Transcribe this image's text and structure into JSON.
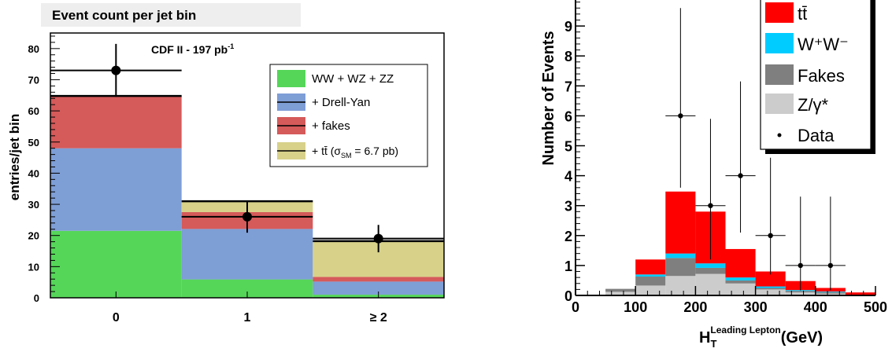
{
  "chart_data": [
    {
      "type": "bar",
      "stacked": true,
      "title": "Event count per jet bin",
      "annotation": "CDF II - 197 pb",
      "annotation_sup": "-1",
      "xlabel": "",
      "ylabel": "entries/jet bin",
      "categories": [
        "0",
        "1",
        "≥ 2"
      ],
      "ylim": [
        0,
        85
      ],
      "yticks": [
        "0",
        "10",
        "20",
        "30",
        "40",
        "50",
        "60",
        "70",
        "80"
      ],
      "legend_position": "top-right",
      "series": [
        {
          "name": "WW + WZ + ZZ",
          "color": "#55d659",
          "values": [
            21.5,
            5.9,
            1.0
          ]
        },
        {
          "name": "+ Drell-Yan",
          "color": "#7e9ed6",
          "values": [
            26.5,
            16.2,
            4.2
          ]
        },
        {
          "name": "+ fakes",
          "color": "#d55a5a",
          "values": [
            16.8,
            5.4,
            1.5
          ]
        },
        {
          "name": "+ tt̄ (σSM = 6.7 pb)",
          "color": "#d7d18a",
          "values": [
            0,
            3.5,
            11.5
          ]
        }
      ],
      "legend_ttbar": {
        "prefix": "+ tt̄ (σ",
        "sub": "SM",
        "suffix": " = 6.7 pb)"
      },
      "data": {
        "y": [
          73,
          26,
          19
        ],
        "yerr": [
          8.5,
          5.1,
          4.4
        ]
      }
    },
    {
      "type": "bar",
      "stacked": true,
      "title": "",
      "xlabel": "H",
      "xlabel_sub": "T",
      "xlabel_sup": "Leading Lepton",
      "xlabel_unit": "(GeV)",
      "ylabel": "Number of Events",
      "xlim": [
        0,
        500
      ],
      "ylim": [
        0,
        10
      ],
      "xticks": [
        "0",
        "100",
        "200",
        "300",
        "400",
        "500"
      ],
      "yticks": [
        "0",
        "1",
        "2",
        "3",
        "4",
        "5",
        "6",
        "7",
        "8",
        "9"
      ],
      "legend_position": "top-right",
      "bin_edges": [
        50,
        100,
        150,
        200,
        250,
        300,
        350,
        400,
        450,
        500
      ],
      "series": [
        {
          "name": "Z/γ*",
          "color": "#cccccc",
          "values": [
            0.12,
            0.33,
            0.65,
            0.72,
            0.4,
            0.2,
            0.1,
            0.06,
            0.02
          ]
        },
        {
          "name": "Fakes",
          "color": "#7f7f7f",
          "values": [
            0.1,
            0.3,
            0.6,
            0.2,
            0.1,
            0.05,
            0.05,
            0.05,
            0
          ]
        },
        {
          "name": "W⁺W⁻",
          "color": "#00ccff",
          "values": [
            0,
            0.07,
            0.15,
            0.15,
            0.1,
            0.05,
            0.03,
            0.02,
            0
          ]
        },
        {
          "name": "tt̄",
          "color": "#ff0000",
          "values": [
            0,
            0.5,
            2.07,
            1.73,
            0.95,
            0.5,
            0.3,
            0.12,
            0.08
          ]
        }
      ],
      "legend_items": [
        {
          "label": "tt̄",
          "color": "#ff0000"
        },
        {
          "label": "W⁺W⁻",
          "color": "#00ccff"
        },
        {
          "label": "Fakes",
          "color": "#7f7f7f"
        },
        {
          "label": "Z/γ*",
          "color": "#cccccc"
        },
        {
          "label": "Data",
          "color": "#000000"
        }
      ],
      "data": {
        "x": [
          175,
          225,
          275,
          325,
          375,
          425
        ],
        "y": [
          6,
          3,
          4,
          2,
          1,
          1
        ],
        "xerr": 25,
        "yerr_up": [
          3.6,
          2.9,
          3.15,
          2.6,
          2.3,
          2.3
        ],
        "yerr_down": [
          2.4,
          1.8,
          1.9,
          1.3,
          0.83,
          0.83
        ]
      }
    }
  ]
}
